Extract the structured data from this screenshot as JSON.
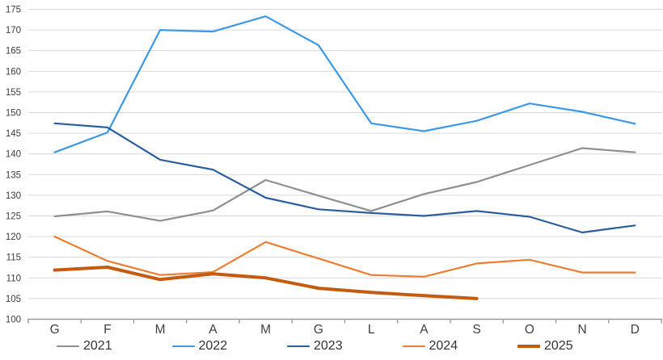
{
  "chart_data": {
    "type": "line",
    "title": "",
    "xlabel": "",
    "ylabel": "",
    "x_categories": [
      "G",
      "F",
      "M",
      "A",
      "M",
      "G",
      "L",
      "A",
      "S",
      "O",
      "N",
      "D"
    ],
    "y_ticks": [
      100,
      105,
      110,
      115,
      120,
      125,
      130,
      135,
      140,
      145,
      150,
      155,
      160,
      165,
      170,
      175
    ],
    "ylim": [
      100,
      175
    ],
    "grid": "horizontal",
    "gridline_color": "#d9d9d9",
    "axis_line_color": "#9b9b9b",
    "legend_position": "bottom",
    "series": [
      {
        "name": "2021",
        "color": "#8f8f8f",
        "line_width": 2.2,
        "values": [
          124.9,
          126.1,
          123.8,
          126.3,
          133.7,
          129.9,
          126.2,
          130.3,
          133.2,
          137.3,
          141.4,
          140.4
        ]
      },
      {
        "name": "2022",
        "color": "#3d99e8",
        "line_width": 2.2,
        "values": [
          140.4,
          145.2,
          170.0,
          169.6,
          173.3,
          166.3,
          147.4,
          145.5,
          148.0,
          152.2,
          150.2,
          147.3
        ]
      },
      {
        "name": "2023",
        "color": "#2c5e9e",
        "line_width": 2.2,
        "values": [
          147.4,
          146.4,
          138.6,
          136.2,
          129.4,
          126.6,
          125.7,
          125.0,
          126.2,
          124.8,
          121.0,
          122.7
        ]
      },
      {
        "name": "2024",
        "color": "#ed7d31",
        "line_width": 2.2,
        "values": [
          120.0,
          114.1,
          110.7,
          111.4,
          118.7,
          114.7,
          110.7,
          110.3,
          113.5,
          114.4,
          111.3,
          111.3
        ]
      },
      {
        "name": "2025",
        "color": "#c55a11",
        "line_width": 4,
        "values": [
          111.9,
          112.6,
          109.6,
          111.0,
          110.0,
          107.5,
          106.5,
          105.7,
          105.0
        ]
      }
    ]
  }
}
